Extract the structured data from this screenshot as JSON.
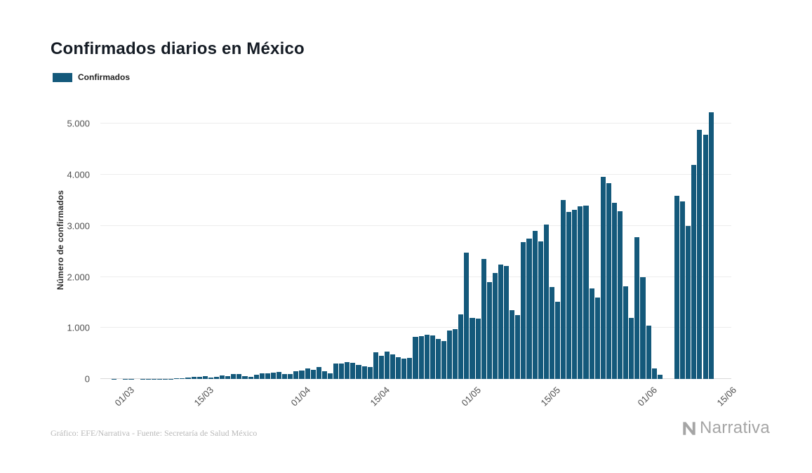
{
  "title": "Confirmados diarios en México",
  "legend": {
    "label": "Confirmados",
    "swatch_color": "#14597B"
  },
  "y_axis": {
    "label": "Número de confirmados",
    "ticks": [
      "0",
      "1.000",
      "2.000",
      "3.000",
      "4.000",
      "5.000"
    ]
  },
  "x_axis": {
    "tick_labels": [
      "01/03",
      "15/03",
      "01/04",
      "15/04",
      "01/05",
      "15/05",
      "01/06",
      "15/06"
    ]
  },
  "footer": {
    "credit": "Gráfico: EFE/Narrativa - Fuente: Secretaría de Salud México",
    "brand": "Narrativa"
  },
  "chart_data": {
    "type": "bar",
    "title": "Confirmados diarios en México",
    "xlabel": "",
    "ylabel": "Número de confirmados",
    "ylim": [
      0,
      5500
    ],
    "grid": true,
    "legend_position": "top-left",
    "bar_color": "#14597B",
    "series_name": "Confirmados",
    "y_tick_values": [
      0,
      1000,
      2000,
      3000,
      4000,
      5000
    ],
    "x_tick_labels": [
      "01/03",
      "15/03",
      "01/04",
      "15/04",
      "01/05",
      "15/05",
      "01/06",
      "15/06"
    ],
    "x_tick_indices": [
      4,
      18,
      35,
      49,
      65,
      79,
      96,
      110
    ],
    "total_slots": 111,
    "categories": [
      "26/02",
      "27/02",
      "28/02",
      "29/02",
      "01/03",
      "02/03",
      "03/03",
      "04/03",
      "05/03",
      "06/03",
      "07/03",
      "08/03",
      "09/03",
      "10/03",
      "11/03",
      "12/03",
      "13/03",
      "14/03",
      "15/03",
      "16/03",
      "17/03",
      "18/03",
      "19/03",
      "20/03",
      "21/03",
      "22/03",
      "23/03",
      "24/03",
      "25/03",
      "26/03",
      "27/03",
      "28/03",
      "29/03",
      "30/03",
      "31/03",
      "01/04",
      "02/04",
      "03/04",
      "04/04",
      "05/04",
      "06/04",
      "07/04",
      "08/04",
      "09/04",
      "10/04",
      "11/04",
      "12/04",
      "13/04",
      "14/04",
      "15/04",
      "16/04",
      "17/04",
      "18/04",
      "19/04",
      "20/04",
      "21/04",
      "22/04",
      "23/04",
      "24/04",
      "25/04",
      "26/04",
      "27/04",
      "28/04",
      "29/04",
      "30/04",
      "01/05",
      "02/05",
      "03/05",
      "04/05",
      "05/05",
      "06/05",
      "07/05",
      "08/05",
      "09/05",
      "10/05",
      "11/05",
      "12/05",
      "13/05",
      "14/05",
      "15/05",
      "16/05",
      "17/05",
      "18/05",
      "19/05",
      "20/05",
      "21/05",
      "22/05",
      "23/05",
      "24/05",
      "25/05",
      "26/05",
      "27/05",
      "28/05",
      "29/05",
      "30/05",
      "31/05",
      "01/06",
      "02/06",
      "03/06",
      "04/06",
      "05/06",
      "06/06",
      "07/06",
      "08/06",
      "09/06",
      "10/06",
      "11/06",
      "12/06"
    ],
    "values": [
      1,
      1,
      2,
      1,
      2,
      2,
      1,
      3,
      2,
      4,
      5,
      4,
      7,
      12,
      20,
      28,
      42,
      36,
      50,
      32,
      48,
      75,
      52,
      92,
      95,
      60,
      48,
      85,
      108,
      112,
      130,
      132,
      90,
      98,
      158,
      163,
      200,
      178,
      230,
      150,
      110,
      296,
      300,
      330,
      310,
      280,
      245,
      240,
      520,
      448,
      530,
      478,
      430,
      400,
      418,
      825,
      840,
      865,
      850,
      790,
      738,
      950,
      970,
      1260,
      2470,
      1200,
      1180,
      2350,
      1900,
      2070,
      2240,
      2220,
      1350,
      1250,
      2680,
      2750,
      2900,
      2700,
      3030,
      1800,
      1510,
      3500,
      3270,
      3320,
      3380,
      3390,
      1780,
      1600,
      3960,
      3840,
      3450,
      3290,
      1820,
      1200,
      2780,
      2000,
      1050,
      200,
      80,
      0,
      0,
      3593,
      3484,
      2999,
      4199,
      4883,
      4790,
      5222
    ]
  }
}
